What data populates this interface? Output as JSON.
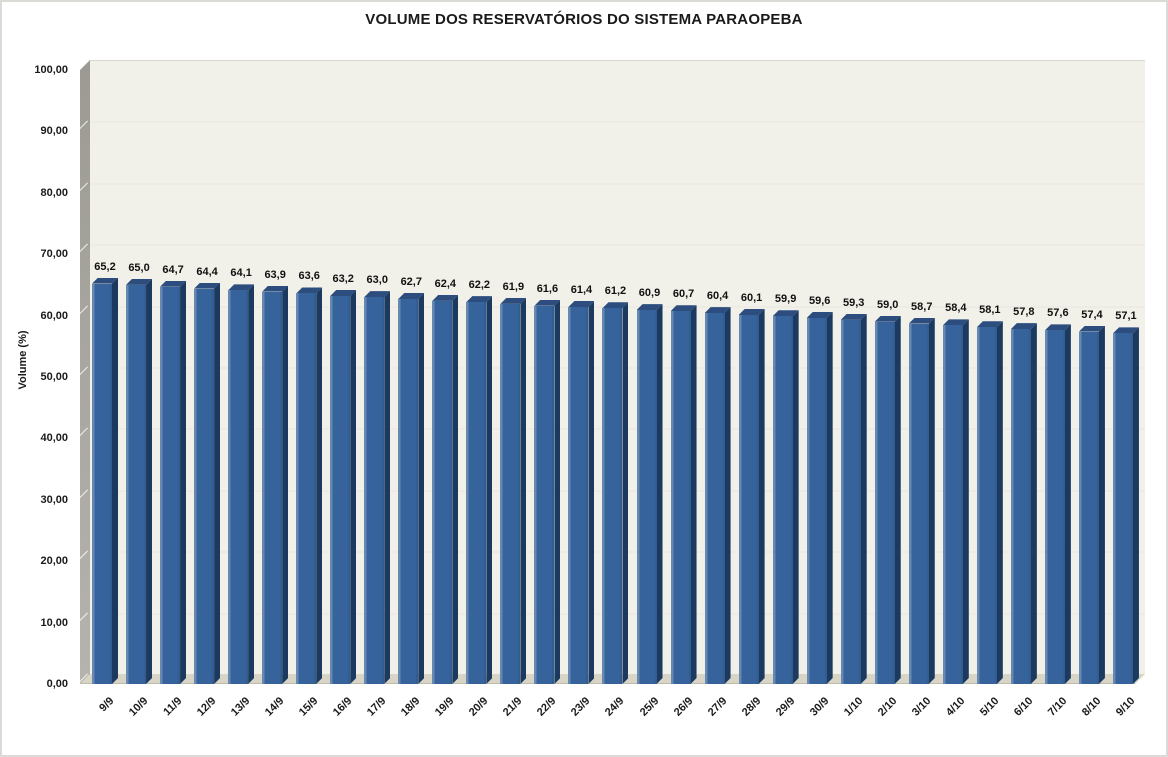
{
  "title": "VOLUME DOS RESERVATÓRIOS DO SISTEMA PARAOPEBA",
  "chart_data": {
    "type": "bar",
    "style": "3d-column",
    "title": "VOLUME DOS RESERVATÓRIOS DO SISTEMA PARAOPEBA",
    "xlabel": "",
    "ylabel": "Volume (%)",
    "ylim": [
      0,
      100
    ],
    "y_tick_step": 10,
    "y_tick_labels": [
      "0,00",
      "10,00",
      "20,00",
      "30,00",
      "40,00",
      "50,00",
      "60,00",
      "70,00",
      "80,00",
      "90,00",
      "100,00"
    ],
    "grid": true,
    "legend": false,
    "categories": [
      "9/9",
      "10/9",
      "11/9",
      "12/9",
      "13/9",
      "14/9",
      "15/9",
      "16/9",
      "17/9",
      "18/9",
      "19/9",
      "20/9",
      "21/9",
      "22/9",
      "23/9",
      "24/9",
      "25/9",
      "26/9",
      "27/9",
      "28/9",
      "29/9",
      "30/9",
      "1/10",
      "2/10",
      "3/10",
      "4/10",
      "5/10",
      "6/10",
      "7/10",
      "8/10",
      "9/10"
    ],
    "values": [
      65.2,
      65.0,
      64.7,
      64.4,
      64.1,
      63.9,
      63.6,
      63.2,
      63.0,
      62.7,
      62.4,
      62.2,
      61.9,
      61.6,
      61.4,
      61.2,
      60.9,
      60.7,
      60.4,
      60.1,
      59.9,
      59.6,
      59.3,
      59.0,
      58.7,
      58.4,
      58.1,
      57.8,
      57.6,
      57.4,
      57.1
    ],
    "value_labels": [
      "65,2",
      "65,0",
      "64,7",
      "64,4",
      "64,1",
      "63,9",
      "63,6",
      "63,2",
      "63,0",
      "62,7",
      "62,4",
      "62,2",
      "61,9",
      "61,6",
      "61,4",
      "61,2",
      "60,9",
      "60,7",
      "60,4",
      "60,1",
      "59,9",
      "59,6",
      "59,3",
      "59,0",
      "58,7",
      "58,4",
      "58,1",
      "57,8",
      "57,6",
      "57,4",
      "57,1"
    ],
    "colors": {
      "bar_front": "#36639B",
      "bar_highlight": "#6788B0",
      "bar_top": "#2C4D7D",
      "bar_side": "#1C3A5F",
      "wall": "#F2F1E9",
      "gridline": "#EDEBE4",
      "floor": "#D8D5C6",
      "side_wall_dark": "#9C9A92",
      "side_wall_light": "#B5B4AC",
      "text": "#1A1A1A"
    }
  }
}
